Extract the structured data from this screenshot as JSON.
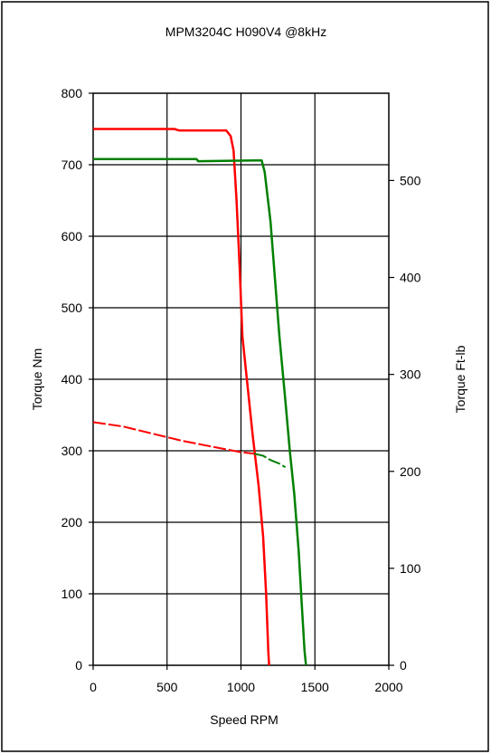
{
  "chart_data": {
    "type": "line",
    "title": "MPM3204C H090V4 @8kHz",
    "xlabel": "Speed RPM",
    "ylabel": "Torque Nm",
    "y2label": "Torque Ft-lb",
    "xlim": [
      0,
      2000
    ],
    "ylim": [
      0,
      800
    ],
    "y2lim": [
      0,
      590
    ],
    "xticks": [
      "0",
      "500",
      "1000",
      "1500",
      "2000"
    ],
    "yticks": [
      "0",
      "100",
      "200",
      "300",
      "400",
      "500",
      "600",
      "700",
      "800"
    ],
    "y2ticks": [
      "0",
      "100",
      "200",
      "300",
      "400",
      "500"
    ],
    "grid": true,
    "series": [
      {
        "color": "#ff0000",
        "style": "solid",
        "points": [
          [
            0,
            750
          ],
          [
            550,
            750
          ],
          [
            580,
            748
          ],
          [
            900,
            748
          ],
          [
            930,
            740
          ],
          [
            950,
            720
          ],
          [
            970,
            650
          ],
          [
            990,
            560
          ],
          [
            1010,
            460
          ],
          [
            1040,
            400
          ],
          [
            1080,
            320
          ],
          [
            1120,
            250
          ],
          [
            1150,
            180
          ],
          [
            1170,
            100
          ],
          [
            1185,
            20
          ],
          [
            1190,
            0
          ]
        ]
      },
      {
        "color": "#008000",
        "style": "solid",
        "points": [
          [
            0,
            708
          ],
          [
            700,
            708
          ],
          [
            710,
            705
          ],
          [
            1100,
            706
          ],
          [
            1140,
            706
          ],
          [
            1160,
            690
          ],
          [
            1200,
            620
          ],
          [
            1230,
            540
          ],
          [
            1260,
            460
          ],
          [
            1300,
            370
          ],
          [
            1330,
            300
          ],
          [
            1360,
            240
          ],
          [
            1390,
            160
          ],
          [
            1410,
            90
          ],
          [
            1430,
            20
          ],
          [
            1440,
            0
          ]
        ]
      },
      {
        "color": "#ff0000",
        "style": "dashed",
        "points": [
          [
            0,
            340
          ],
          [
            200,
            334
          ],
          [
            400,
            324
          ],
          [
            600,
            314
          ],
          [
            800,
            306
          ],
          [
            900,
            302
          ],
          [
            1000,
            298
          ],
          [
            1090,
            296
          ]
        ]
      },
      {
        "color": "#008000",
        "style": "dashed",
        "points": [
          [
            1090,
            296
          ],
          [
            1150,
            293
          ],
          [
            1200,
            287
          ],
          [
            1260,
            282
          ],
          [
            1300,
            277
          ]
        ]
      }
    ]
  }
}
